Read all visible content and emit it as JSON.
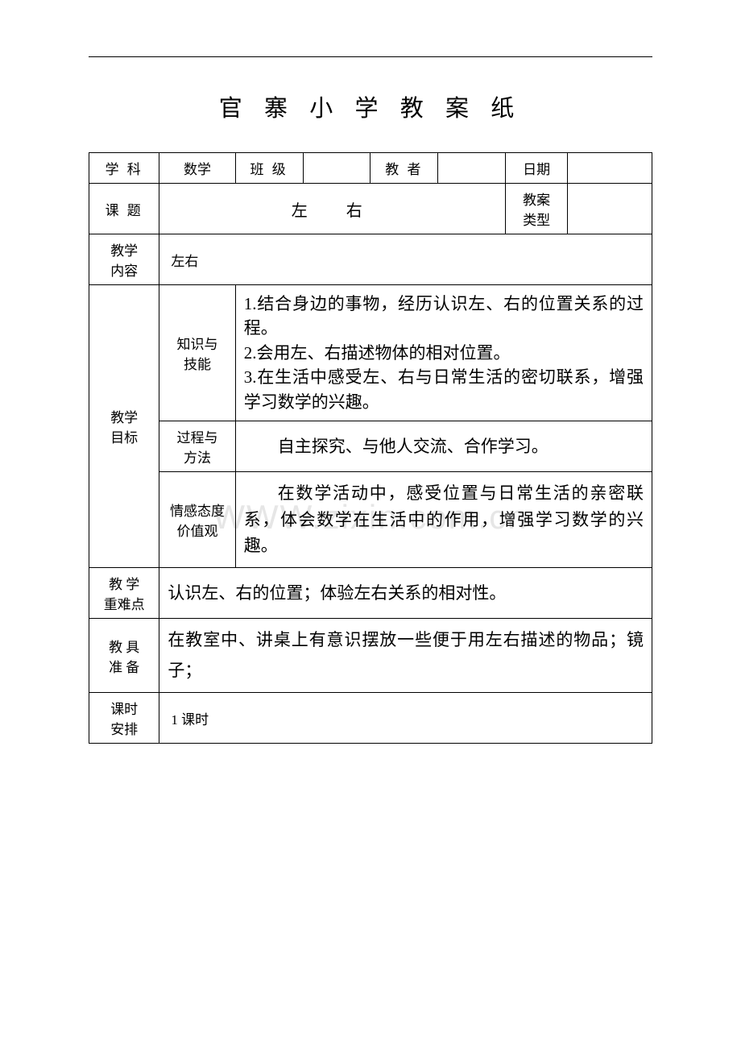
{
  "title": "官 寨 小 学 教 案 纸",
  "watermark": "WWW.zixin.com.cn",
  "row1": {
    "subject_label": "学 科",
    "subject_value": "数学",
    "class_label": "班 级",
    "class_value": "",
    "teacher_label": "教 者",
    "teacher_value": "",
    "date_label": "日期",
    "date_value": ""
  },
  "row2": {
    "topic_label": "课 题",
    "topic_value": "左　右",
    "plan_type_label_1": "教案",
    "plan_type_label_2": "类型",
    "plan_type_value": ""
  },
  "row3": {
    "content_label_1": "教学",
    "content_label_2": "内容",
    "content_value": "左右"
  },
  "goals": {
    "group_label_1": "教学",
    "group_label_2": "目标",
    "knowledge_label_1": "知识与",
    "knowledge_label_2": "技能",
    "knowledge_text": "1.结合身边的事物，经历认识左、右的位置关系的过程。\n2.会用左、右描述物体的相对位置。\n3.在生活中感受左、右与日常生活的密切联系，增强学习数学的兴趣。",
    "process_label_1": "过程与",
    "process_label_2": "方法",
    "process_text": "自主探究、与他人交流、合作学习。",
    "emotion_label_1": "情感态度",
    "emotion_label_2": "价值观",
    "emotion_text": "在数学活动中，感受位置与日常生活的亲密联系，体会数学在生活中的作用，增强学习数学的兴趣。"
  },
  "difficulty": {
    "label_1": "教 学",
    "label_2": "重难点",
    "text": "认识左、右的位置；体验左右关系的相对性。"
  },
  "tools": {
    "label_1": "教 具",
    "label_2": "准 备",
    "text": "在教室中、讲桌上有意识摆放一些便于用左右描述的物品；镜子；"
  },
  "periods": {
    "label_1": "课时",
    "label_2": "安排",
    "value": "1 课时"
  },
  "colors": {
    "border": "#000000",
    "text": "#000000",
    "background": "#ffffff",
    "watermark": "#e6e6e6"
  }
}
